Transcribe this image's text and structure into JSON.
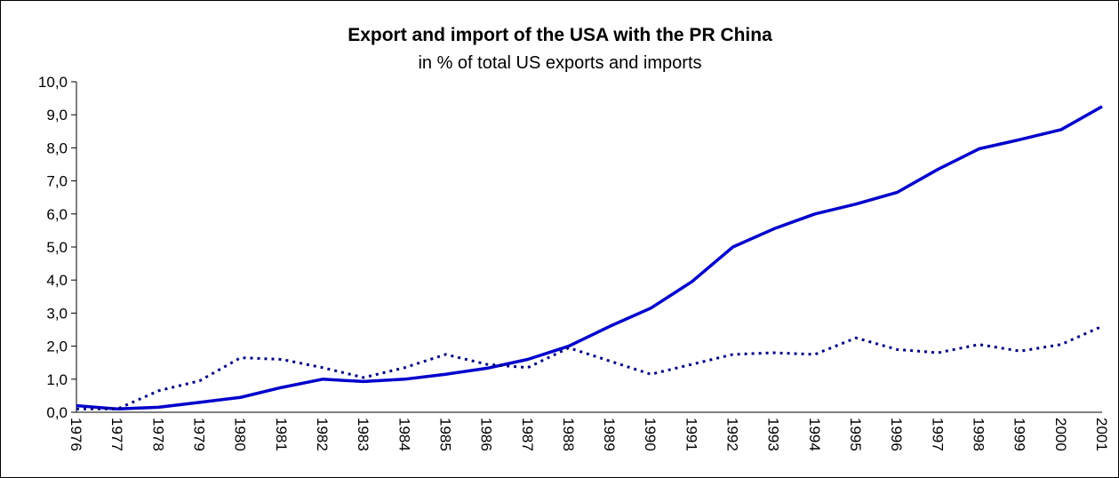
{
  "chart_data": {
    "type": "line",
    "title": "Export and import of the USA with the PR China",
    "subtitle": "in % of total US exports and imports",
    "categories": [
      "1976",
      "1977",
      "1978",
      "1979",
      "1980",
      "1981",
      "1982",
      "1983",
      "1984",
      "1985",
      "1986",
      "1987",
      "1988",
      "1989",
      "1990",
      "1991",
      "1992",
      "1993",
      "1994",
      "1995",
      "1996",
      "1997",
      "1998",
      "1999",
      "2000",
      "2001"
    ],
    "series": [
      {
        "color": "#0000cc",
        "style": "solid",
        "values": [
          0.2,
          0.1,
          0.15,
          0.3,
          0.45,
          0.75,
          1.0,
          0.93,
          1.0,
          1.15,
          1.33,
          1.6,
          2.0,
          2.6,
          3.15,
          3.95,
          5.0,
          5.55,
          6.0,
          6.3,
          6.65,
          7.35,
          7.97,
          8.25,
          8.55,
          9.25
        ]
      },
      {
        "color": "#000080",
        "style": "dotted",
        "values": [
          0.1,
          0.1,
          0.65,
          0.95,
          1.65,
          1.6,
          1.35,
          1.05,
          1.35,
          1.75,
          1.45,
          1.35,
          1.95,
          1.55,
          1.15,
          1.45,
          1.75,
          1.8,
          1.75,
          2.25,
          1.9,
          1.8,
          2.05,
          1.85,
          2.05,
          2.6
        ]
      }
    ],
    "ylim": [
      0,
      10
    ],
    "yticks": [
      {
        "value": 0,
        "label": "0,0"
      },
      {
        "value": 1,
        "label": "1,0"
      },
      {
        "value": 2,
        "label": "2,0"
      },
      {
        "value": 3,
        "label": "3,0"
      },
      {
        "value": 4,
        "label": "4,0"
      },
      {
        "value": 5,
        "label": "5,0"
      },
      {
        "value": 6,
        "label": "6,0"
      },
      {
        "value": 7,
        "label": "7,0"
      },
      {
        "value": 8,
        "label": "8,0"
      },
      {
        "value": 9,
        "label": "9,0"
      },
      {
        "value": 10,
        "label": "10,0"
      }
    ],
    "grid": false
  }
}
